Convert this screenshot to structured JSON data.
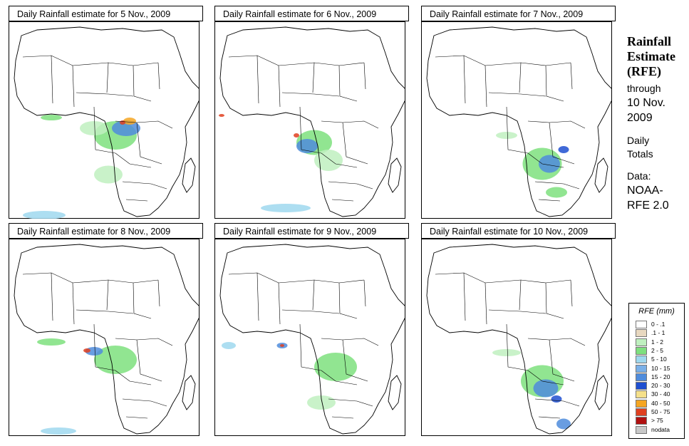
{
  "panels": [
    {
      "title": "Daily Rainfall estimate for  5 Nov., 2009"
    },
    {
      "title": "Daily Rainfall estimate for  6 Nov., 2009"
    },
    {
      "title": "Daily Rainfall estimate for  7 Nov., 2009"
    },
    {
      "title": "Daily Rainfall estimate for  8 Nov., 2009"
    },
    {
      "title": "Daily Rainfall estimate for  9 Nov., 2009"
    },
    {
      "title": "Daily Rainfall estimate for  10 Nov., 2009"
    }
  ],
  "side": {
    "line1": "Rainfall",
    "line2": "Estimate",
    "line3": "(RFE)",
    "through": "through",
    "date1": "10 Nov.",
    "date2": "2009",
    "daily1": "Daily",
    "daily2": "Totals",
    "data1": "Data:",
    "data2": "NOAA-",
    "data3": "RFE 2.0"
  },
  "legend": {
    "title": "RFE (mm)",
    "items": [
      {
        "label": "0 - .1",
        "color": "#ffffff"
      },
      {
        "label": ".1 - 1",
        "color": "#e8d8c0"
      },
      {
        "label": "1 - 2",
        "color": "#bff0bf"
      },
      {
        "label": "2 - 5",
        "color": "#7ee07e"
      },
      {
        "label": "5 - 10",
        "color": "#9fd8ee"
      },
      {
        "label": "10 - 15",
        "color": "#7ab0e8"
      },
      {
        "label": "15 - 20",
        "color": "#4f8cdc"
      },
      {
        "label": "20 - 30",
        "color": "#1f4fd0"
      },
      {
        "label": "30 - 40",
        "color": "#f5e08a"
      },
      {
        "label": "40 - 50",
        "color": "#f5a623"
      },
      {
        "label": "50 - 75",
        "color": "#e04020"
      },
      {
        "label": "> 75",
        "color": "#b01010"
      },
      {
        "label": "nodata",
        "color": "#c8c8c8"
      }
    ]
  }
}
